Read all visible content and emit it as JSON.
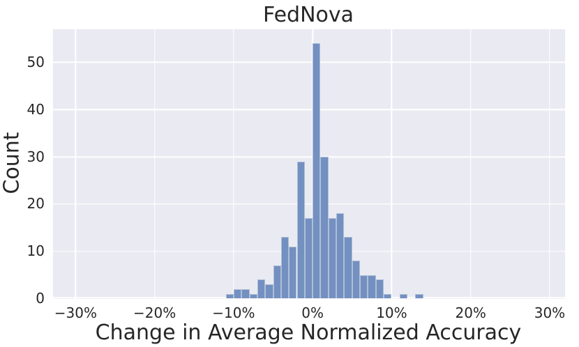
{
  "figure": {
    "title": "FedNova"
  },
  "chart_data": {
    "type": "bar",
    "subtype": "histogram",
    "title": "FedNova",
    "xlabel": "Change in Average Normalized Accuracy",
    "ylabel": "Count",
    "x_unit": "percent",
    "bins": {
      "start_pct": -11,
      "width_pct": 1
    },
    "counts": [
      1,
      2,
      2,
      1,
      4,
      3,
      7,
      13,
      11,
      29,
      17,
      54,
      30,
      17,
      18,
      13,
      8,
      5,
      5,
      4,
      1,
      0,
      1,
      0,
      1
    ],
    "peak_count": 54,
    "xticks": [
      {
        "value": -30,
        "label": "−30%"
      },
      {
        "value": -20,
        "label": "−20%"
      },
      {
        "value": -10,
        "label": "−10%"
      },
      {
        "value": 0,
        "label": "0%"
      },
      {
        "value": 10,
        "label": "10%"
      },
      {
        "value": 20,
        "label": "20%"
      },
      {
        "value": 30,
        "label": "30%"
      }
    ],
    "yticks": [
      {
        "value": 0,
        "label": "0"
      },
      {
        "value": 10,
        "label": "10"
      },
      {
        "value": 20,
        "label": "20"
      },
      {
        "value": 30,
        "label": "30"
      },
      {
        "value": 40,
        "label": "40"
      },
      {
        "value": 50,
        "label": "50"
      }
    ],
    "xlim": [
      -32.9,
      31.9
    ],
    "ylim": [
      0,
      57
    ],
    "grid": true,
    "legend_position": "none",
    "colors": {
      "bar_fill": "#7390c0",
      "bar_edge": "#aebfd9",
      "plot_bg": "#eaeaf2",
      "grid": "#ffffff",
      "text": "#262626",
      "figure_bg": "#ffffff"
    }
  }
}
